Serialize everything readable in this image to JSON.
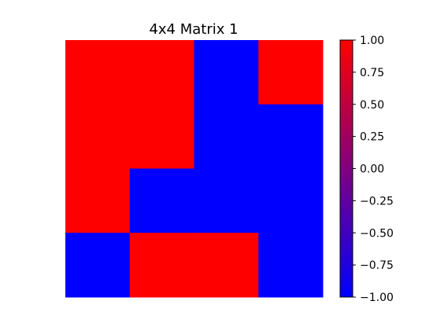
{
  "chart_data": {
    "type": "heatmap",
    "title": "4x4 Matrix 1",
    "rows": 4,
    "cols": 4,
    "values": [
      [
        1,
        1,
        -1,
        1
      ],
      [
        1,
        1,
        -1,
        -1
      ],
      [
        1,
        -1,
        -1,
        -1
      ],
      [
        -1,
        1,
        1,
        -1
      ]
    ],
    "colormap": {
      "low_color": "#0000ff",
      "high_color": "#ff0000"
    },
    "colorbar": {
      "min": -1.0,
      "max": 1.0,
      "ticks": [
        "1.00",
        "0.75",
        "0.50",
        "0.25",
        "0.00",
        "−0.25",
        "−0.50",
        "−0.75",
        "−1.00"
      ]
    },
    "xlabel": "",
    "ylabel": "",
    "grid": false,
    "axes_visible": false
  }
}
